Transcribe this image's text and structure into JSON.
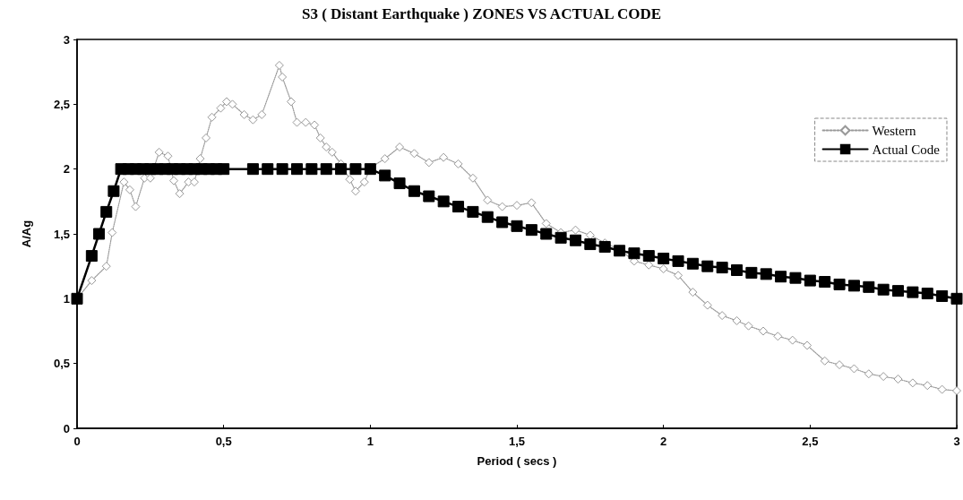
{
  "chart_data": {
    "type": "line",
    "title": "S3 ( Distant Earthquake ) ZONES VS ACTUAL CODE",
    "xlabel": "Period ( secs )",
    "ylabel": "A/Ag",
    "xlim": [
      0,
      3
    ],
    "ylim": [
      0,
      3
    ],
    "xticks": [
      0,
      {
        "value": 0.5,
        "label": "0,5"
      },
      1,
      {
        "value": 1.5,
        "label": "1,5"
      },
      2,
      {
        "value": 2.5,
        "label": "2,5"
      },
      3
    ],
    "yticks": [
      0,
      {
        "value": 0.5,
        "label": "0,5"
      },
      1,
      {
        "value": 1.5,
        "label": "1,5"
      },
      2,
      {
        "value": 2.5,
        "label": "2,5"
      },
      3
    ],
    "grid": false,
    "legend": "top right",
    "series": [
      {
        "name": "Western",
        "color": "#999999",
        "marker": "diamond",
        "line_style": "dotted",
        "x": [
          0,
          0.05,
          0.1,
          0.12,
          0.16,
          0.18,
          0.2,
          0.23,
          0.25,
          0.28,
          0.31,
          0.33,
          0.35,
          0.38,
          0.4,
          0.42,
          0.44,
          0.46,
          0.49,
          0.51,
          0.53,
          0.57,
          0.6,
          0.63,
          0.69,
          0.7,
          0.73,
          0.75,
          0.78,
          0.81,
          0.83,
          0.85,
          0.87,
          0.9,
          0.93,
          0.95,
          0.98,
          1.0,
          1.05,
          1.1,
          1.15,
          1.2,
          1.25,
          1.3,
          1.35,
          1.4,
          1.45,
          1.5,
          1.55,
          1.6,
          1.65,
          1.7,
          1.75,
          1.8,
          1.85,
          1.9,
          1.95,
          2.0,
          2.05,
          2.1,
          2.15,
          2.2,
          2.25,
          2.29,
          2.34,
          2.39,
          2.44,
          2.49,
          2.55,
          2.6,
          2.65,
          2.7,
          2.75,
          2.8,
          2.85,
          2.9,
          2.95,
          3.0
        ],
        "values": [
          1.0,
          1.14,
          1.25,
          1.51,
          1.9,
          1.84,
          1.71,
          1.93,
          1.93,
          2.13,
          2.1,
          1.91,
          1.81,
          1.9,
          1.9,
          2.08,
          2.24,
          2.4,
          2.47,
          2.52,
          2.5,
          2.42,
          2.38,
          2.42,
          2.8,
          2.71,
          2.52,
          2.36,
          2.36,
          2.34,
          2.24,
          2.17,
          2.13,
          2.04,
          1.92,
          1.83,
          1.9,
          2.01,
          2.08,
          2.17,
          2.12,
          2.05,
          2.09,
          2.04,
          1.93,
          1.76,
          1.71,
          1.72,
          1.74,
          1.58,
          1.51,
          1.53,
          1.49,
          1.43,
          1.38,
          1.29,
          1.26,
          1.23,
          1.18,
          1.05,
          0.95,
          0.87,
          0.83,
          0.79,
          0.75,
          0.71,
          0.68,
          0.64,
          0.52,
          0.49,
          0.46,
          0.42,
          0.4,
          0.38,
          0.35,
          0.33,
          0.3,
          0.29
        ]
      },
      {
        "name": "Actual Code",
        "color": "#000000",
        "marker": "square",
        "line_style": "solid",
        "x": [
          0,
          0.05,
          0.075,
          0.1,
          0.125,
          0.15,
          0.175,
          0.2,
          0.225,
          0.25,
          0.275,
          0.3,
          0.325,
          0.35,
          0.375,
          0.4,
          0.425,
          0.45,
          0.475,
          0.5,
          0.6,
          0.65,
          0.7,
          0.75,
          0.8,
          0.85,
          0.9,
          0.95,
          1.0,
          1.05,
          1.1,
          1.15,
          1.2,
          1.25,
          1.3,
          1.35,
          1.4,
          1.45,
          1.5,
          1.55,
          1.6,
          1.65,
          1.7,
          1.75,
          1.8,
          1.85,
          1.9,
          1.95,
          2.0,
          2.05,
          2.1,
          2.15,
          2.2,
          2.25,
          2.3,
          2.35,
          2.4,
          2.45,
          2.5,
          2.55,
          2.6,
          2.65,
          2.7,
          2.75,
          2.8,
          2.85,
          2.9,
          2.95,
          3.0
        ],
        "values": [
          1.0,
          1.33,
          1.5,
          1.67,
          1.83,
          2,
          2,
          2,
          2,
          2,
          2,
          2,
          2,
          2,
          2,
          2,
          2,
          2,
          2,
          2,
          2,
          2,
          2,
          2,
          2,
          2,
          2,
          2,
          2,
          1.95,
          1.89,
          1.83,
          1.79,
          1.75,
          1.71,
          1.67,
          1.63,
          1.59,
          1.56,
          1.53,
          1.5,
          1.47,
          1.45,
          1.42,
          1.4,
          1.37,
          1.35,
          1.33,
          1.31,
          1.29,
          1.27,
          1.25,
          1.24,
          1.22,
          1.2,
          1.19,
          1.17,
          1.16,
          1.14,
          1.13,
          1.11,
          1.1,
          1.09,
          1.07,
          1.06,
          1.05,
          1.04,
          1.02,
          1.0
        ]
      }
    ]
  }
}
